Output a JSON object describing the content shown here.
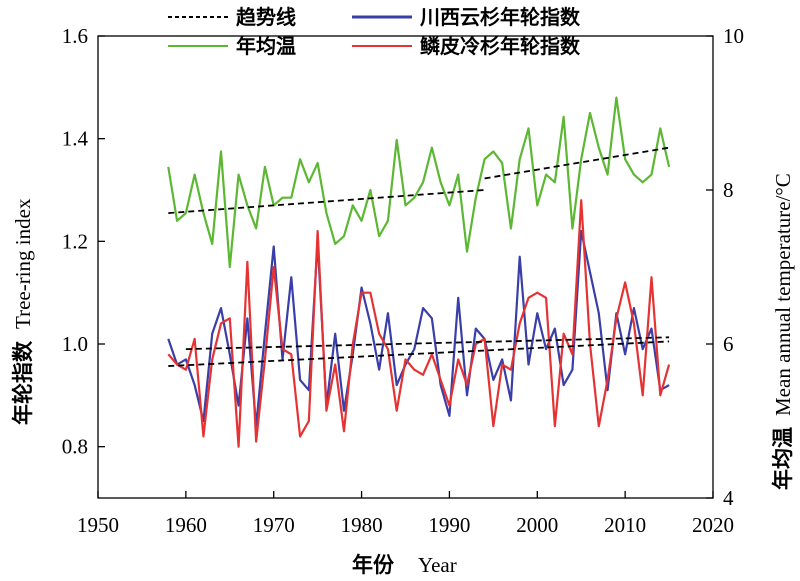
{
  "chart_data": {
    "type": "line",
    "xlabel_zh": "年份",
    "xlabel_en": "Year",
    "ylabel_zh": "年轮指数",
    "ylabel_en": "Tree-ring index",
    "y2label_zh": "年均温",
    "y2label_en": "Mean annual temperature/°C",
    "xlim": [
      1950,
      2020
    ],
    "ylim": [
      0.7,
      1.6
    ],
    "y2lim": [
      4,
      10
    ],
    "x_ticks": [
      "1950",
      "1960",
      "1970",
      "1980",
      "1990",
      "2000",
      "2010",
      "2020"
    ],
    "y_ticks": [
      "0.8",
      "1.0",
      "1.2",
      "1.4",
      "1.6"
    ],
    "y2_ticks": [
      "4",
      "6",
      "8",
      "10"
    ],
    "legend": {
      "placement": "top",
      "entries": [
        {
          "label": "趋势线",
          "color": "#000000",
          "style": "dashed"
        },
        {
          "label": "川西云杉年轮指数",
          "color": "#3a3fa8",
          "style": "solid"
        },
        {
          "label": "年均温",
          "color": "#5cb733",
          "style": "solid"
        },
        {
          "label": "鳞皮冷杉年轮指数",
          "color": "#e53333",
          "style": "solid"
        }
      ]
    },
    "years": [
      1958,
      1959,
      1960,
      1961,
      1962,
      1963,
      1964,
      1965,
      1966,
      1967,
      1968,
      1969,
      1970,
      1971,
      1972,
      1973,
      1974,
      1975,
      1976,
      1977,
      1978,
      1979,
      1980,
      1981,
      1982,
      1983,
      1984,
      1985,
      1986,
      1987,
      1988,
      1989,
      1990,
      1991,
      1992,
      1993,
      1994,
      1995,
      1996,
      1997,
      1998,
      1999,
      2000,
      2001,
      2002,
      2003,
      2004,
      2005,
      2006,
      2007,
      2008,
      2009,
      2010,
      2011,
      2012,
      2013,
      2014,
      2015
    ],
    "series": [
      {
        "name": "年均温",
        "axis": "right",
        "color": "#5cb733",
        "values": [
          8.3,
          7.6,
          7.7,
          8.2,
          7.7,
          7.3,
          8.5,
          7.0,
          8.2,
          7.8,
          7.5,
          8.3,
          7.8,
          7.9,
          7.9,
          8.4,
          8.1,
          8.35,
          7.7,
          7.3,
          7.4,
          7.8,
          7.6,
          8.0,
          7.4,
          7.6,
          8.65,
          7.8,
          7.9,
          8.1,
          8.55,
          8.1,
          7.8,
          8.2,
          7.2,
          7.9,
          8.4,
          8.5,
          8.35,
          7.5,
          8.4,
          8.8,
          7.8,
          8.2,
          8.1,
          8.95,
          7.5,
          8.4,
          9.0,
          8.55,
          8.2,
          9.2,
          8.4,
          8.2,
          8.1,
          8.2,
          8.8,
          8.3
        ]
      },
      {
        "name": "川西云杉年轮指数",
        "axis": "left",
        "color": "#3a3fa8",
        "values": [
          1.01,
          0.96,
          0.97,
          0.92,
          0.85,
          1.02,
          1.07,
          0.98,
          0.88,
          1.05,
          0.84,
          1.02,
          1.19,
          0.97,
          1.13,
          0.93,
          0.91,
          1.2,
          0.88,
          1.02,
          0.87,
          0.98,
          1.11,
          1.04,
          0.95,
          1.06,
          0.92,
          0.96,
          0.99,
          1.07,
          1.05,
          0.92,
          0.86,
          1.09,
          0.9,
          1.03,
          1.01,
          0.93,
          0.97,
          0.89,
          1.17,
          0.96,
          1.06,
          0.99,
          1.03,
          0.92,
          0.95,
          1.22,
          1.14,
          1.06,
          0.91,
          1.06,
          0.98,
          1.07,
          0.99,
          1.03,
          0.91,
          0.92
        ]
      },
      {
        "name": "鳞皮冷杉年轮指数",
        "axis": "left",
        "color": "#e53333",
        "values": [
          0.98,
          0.96,
          0.95,
          1.01,
          0.82,
          0.97,
          1.04,
          1.05,
          0.8,
          1.16,
          0.81,
          0.97,
          1.15,
          0.99,
          0.98,
          0.82,
          0.85,
          1.22,
          0.87,
          0.96,
          0.83,
          1.0,
          1.1,
          1.1,
          1.02,
          0.99,
          0.87,
          0.97,
          0.95,
          0.94,
          0.98,
          0.93,
          0.88,
          0.97,
          0.92,
          1.0,
          1.01,
          0.84,
          0.96,
          0.95,
          1.04,
          1.09,
          1.1,
          1.09,
          0.84,
          1.02,
          0.98,
          1.28,
          1.0,
          0.84,
          0.93,
          1.05,
          1.12,
          1.04,
          0.9,
          1.13,
          0.9,
          0.96
        ]
      },
      {
        "name": "趋势线",
        "kind": "trend",
        "color": "#000000",
        "segments": [
          {
            "axis": "right",
            "x": [
              1958,
              1994
            ],
            "y": [
              7.7,
              8.0
            ]
          },
          {
            "axis": "right",
            "x": [
              1994,
              2015
            ],
            "y": [
              8.15,
              8.55
            ]
          },
          {
            "axis": "left",
            "x": [
              1958,
              2015
            ],
            "y": [
              0.957,
              1.005
            ]
          },
          {
            "axis": "left",
            "x": [
              1960,
              2015
            ],
            "y": [
              0.99,
              1.013
            ]
          }
        ]
      }
    ]
  }
}
